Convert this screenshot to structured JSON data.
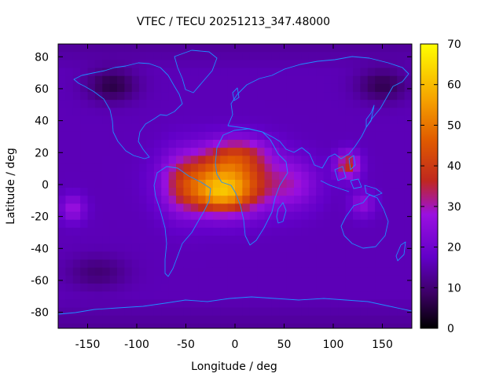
{
  "chart_data": {
    "type": "heatmap",
    "title": "VTEC / TECU 20251213_347.48000",
    "xlabel": "Longitude / deg",
    "ylabel": "Latitude / deg",
    "xlim": [
      -180,
      180
    ],
    "ylim": [
      -90,
      88
    ],
    "x_ticks": [
      -150,
      -100,
      -50,
      0,
      50,
      100,
      150
    ],
    "y_ticks": [
      -80,
      -60,
      -40,
      -20,
      0,
      20,
      40,
      60,
      80
    ],
    "colorbar": {
      "range": [
        0,
        70
      ],
      "ticks": [
        0,
        10,
        20,
        30,
        40,
        50,
        60,
        70
      ],
      "palette": "black-purple-red-orange-yellow"
    },
    "grid_lon_step": 7.5,
    "grid_lat_step": 5,
    "background_vtec": 16,
    "features": [
      {
        "name": "equatorial-peak-main",
        "lon": -10,
        "lat": 2,
        "vtec": 38,
        "width_lon": 45,
        "width_lat": 18
      },
      {
        "name": "equatorial-peak-south",
        "lon": -15,
        "lat": -8,
        "vtec": 14,
        "width_lon": 30,
        "width_lat": 10
      },
      {
        "name": "peak-north-africa",
        "lon": 5,
        "lat": 20,
        "vtec": 12,
        "width_lon": 30,
        "width_lat": 10
      },
      {
        "name": "peak-west-atlantic",
        "lon": -55,
        "lat": 0,
        "vtec": 10,
        "width_lon": 20,
        "width_lat": 20
      },
      {
        "name": "peak-indian-ocean",
        "lon": 60,
        "lat": 0,
        "vtec": 10,
        "width_lon": 25,
        "width_lat": 15
      },
      {
        "name": "peak-southeast-asia",
        "lon": 115,
        "lat": 12,
        "vtec": 22,
        "width_lon": 12,
        "width_lat": 8
      },
      {
        "name": "peak-southeast-asia-low",
        "lon": 130,
        "lat": -12,
        "vtec": 10,
        "width_lon": 12,
        "width_lat": 8
      },
      {
        "name": "spot-east-pacific",
        "lon": -165,
        "lat": -15,
        "vtec": 12,
        "width_lon": 12,
        "width_lat": 8
      },
      {
        "name": "trough-north-atlantic",
        "lon": -125,
        "lat": 62,
        "vtec": -10,
        "width_lon": 25,
        "width_lat": 10
      },
      {
        "name": "trough-north-asia",
        "lon": 150,
        "lat": 62,
        "vtec": -9,
        "width_lon": 25,
        "width_lat": 10
      },
      {
        "name": "trough-south-pacific",
        "lon": -140,
        "lat": -55,
        "vtec": -6,
        "width_lon": 30,
        "width_lat": 10
      }
    ]
  },
  "colors": {
    "coastline": "#1e8fff",
    "frame": "#000000"
  }
}
